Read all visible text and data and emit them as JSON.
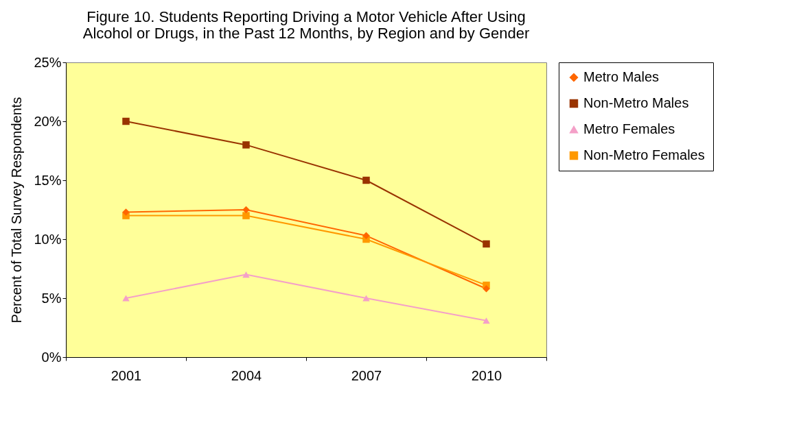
{
  "chart_data": {
    "type": "line",
    "title": "Figure 10. Students Reporting Driving a Motor Vehicle After Using Alcohol or Drugs, in the Past 12 Months, by Region and by Gender",
    "ylabel": "Percent of Total Survey Respondents",
    "categories": [
      "2001",
      "2004",
      "2007",
      "2010"
    ],
    "series": [
      {
        "name": "Metro Males",
        "color": "#ff6600",
        "marker": "diamond",
        "values": [
          12.3,
          12.5,
          10.3,
          5.8
        ]
      },
      {
        "name": "Non-Metro Males",
        "color": "#993300",
        "marker": "square",
        "values": [
          20.0,
          18.0,
          15.0,
          9.6
        ]
      },
      {
        "name": "Metro Females",
        "color": "#f4a0c8",
        "marker": "triangle",
        "values": [
          5.0,
          7.0,
          5.0,
          3.1
        ]
      },
      {
        "name": "Non-Metro Females",
        "color": "#ff9900",
        "marker": "square",
        "values": [
          12.0,
          12.0,
          10.0,
          6.1
        ]
      }
    ],
    "ylim": [
      0,
      25
    ],
    "yticks": [
      {
        "value": 0,
        "label": "0%"
      },
      {
        "value": 5,
        "label": "5%"
      },
      {
        "value": 10,
        "label": "10%"
      },
      {
        "value": 15,
        "label": "15%"
      },
      {
        "value": 20,
        "label": "20%"
      },
      {
        "value": 25,
        "label": "25%"
      }
    ],
    "grid": false,
    "legend": "right",
    "line_style": "solid"
  }
}
